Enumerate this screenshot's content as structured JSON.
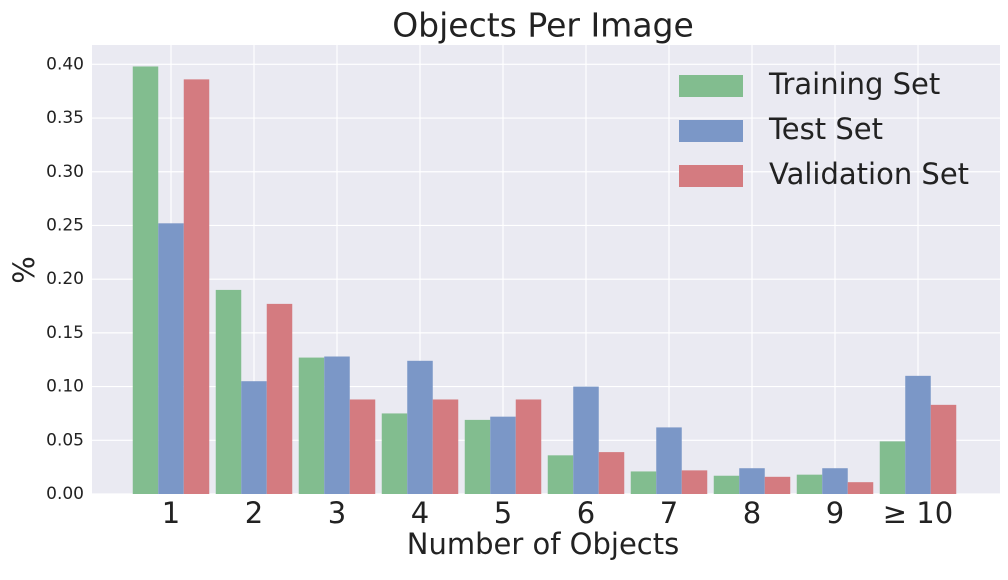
{
  "chart_data": {
    "type": "bar",
    "title": "Objects Per Image",
    "xlabel": "Number of Objects",
    "ylabel": "%",
    "categories": [
      "1",
      "2",
      "3",
      "4",
      "5",
      "6",
      "7",
      "8",
      "9",
      "≥ 10"
    ],
    "series": [
      {
        "name": "Training Set",
        "color": "#82bd8f",
        "values": [
          0.398,
          0.19,
          0.127,
          0.075,
          0.069,
          0.036,
          0.021,
          0.017,
          0.018,
          0.049
        ]
      },
      {
        "name": "Test Set",
        "color": "#7b97c7",
        "values": [
          0.252,
          0.105,
          0.128,
          0.124,
          0.072,
          0.1,
          0.062,
          0.024,
          0.024,
          0.11
        ]
      },
      {
        "name": "Validation Set",
        "color": "#d47b80",
        "values": [
          0.386,
          0.177,
          0.088,
          0.088,
          0.088,
          0.039,
          0.022,
          0.016,
          0.011,
          0.083
        ]
      }
    ],
    "ylim": [
      0,
      0.418
    ],
    "yticks": [
      {
        "value": 0,
        "label": "0.00"
      },
      {
        "value": 0.05,
        "label": "0.05"
      },
      {
        "value": 0.1,
        "label": "0.10"
      },
      {
        "value": 0.15,
        "label": "0.15"
      },
      {
        "value": 0.2,
        "label": "0.20"
      },
      {
        "value": 0.25,
        "label": "0.25"
      },
      {
        "value": 0.3,
        "label": "0.30"
      },
      {
        "value": 0.35,
        "label": "0.35"
      },
      {
        "value": 0.4,
        "label": "0.40"
      }
    ],
    "grid": true,
    "legend": "upper right"
  }
}
